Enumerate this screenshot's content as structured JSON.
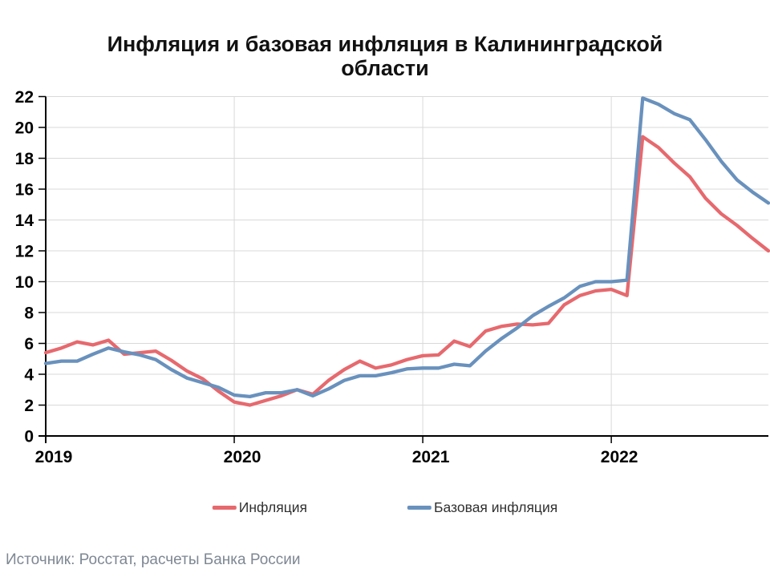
{
  "title": "Инфляция и базовая инфляция в Калининградской области",
  "source_note": "Источник: Росстат, расчеты Банка России",
  "legend": {
    "items": [
      {
        "label": "Инфляция",
        "color": "#E6696E"
      },
      {
        "label": "Базовая инфляция",
        "color": "#6991BD"
      }
    ]
  },
  "chart_data": {
    "type": "line",
    "title": "Инфляция и базовая инфляция в Калининградской области",
    "xlabel": "",
    "ylabel": "",
    "ylim": [
      0,
      22
    ],
    "y_ticks": [
      0,
      2,
      4,
      6,
      8,
      10,
      12,
      14,
      16,
      18,
      20,
      22
    ],
    "x_tick_labels": [
      "2019",
      "2020",
      "2021",
      "2022"
    ],
    "legend_position": "bottom",
    "grid": {
      "horizontal": true,
      "vertical_at_year_starts": true,
      "color": "#D9D9D9"
    },
    "axis_color": "#000000",
    "x": [
      "2019-01",
      "2019-02",
      "2019-03",
      "2019-04",
      "2019-05",
      "2019-06",
      "2019-07",
      "2019-08",
      "2019-09",
      "2019-10",
      "2019-11",
      "2019-12",
      "2020-01",
      "2020-02",
      "2020-03",
      "2020-04",
      "2020-05",
      "2020-06",
      "2020-07",
      "2020-08",
      "2020-09",
      "2020-10",
      "2020-11",
      "2020-12",
      "2021-01",
      "2021-02",
      "2021-03",
      "2021-04",
      "2021-05",
      "2021-06",
      "2021-07",
      "2021-08",
      "2021-09",
      "2021-10",
      "2021-11",
      "2021-12",
      "2022-01",
      "2022-02",
      "2022-03",
      "2022-04",
      "2022-05",
      "2022-06",
      "2022-07",
      "2022-08",
      "2022-09",
      "2022-10",
      "2022-11"
    ],
    "series": [
      {
        "name": "Инфляция",
        "color": "#E6696E",
        "values": [
          5.4,
          5.7,
          6.1,
          5.9,
          6.2,
          5.3,
          5.4,
          5.5,
          4.9,
          4.2,
          3.7,
          2.9,
          2.2,
          2.0,
          2.3,
          2.6,
          3.0,
          2.7,
          3.6,
          4.3,
          4.85,
          4.4,
          4.6,
          4.95,
          5.2,
          5.25,
          6.15,
          5.8,
          6.8,
          7.1,
          7.25,
          7.2,
          7.3,
          8.5,
          9.1,
          9.4,
          9.5,
          9.1,
          19.4,
          18.7,
          17.7,
          16.8,
          15.4,
          14.4,
          13.65,
          12.8,
          12.0
        ]
      },
      {
        "name": "Базовая инфляция",
        "color": "#6991BD",
        "values": [
          4.7,
          4.85,
          4.85,
          5.3,
          5.7,
          5.45,
          5.25,
          4.95,
          4.3,
          3.75,
          3.45,
          3.15,
          2.65,
          2.55,
          2.8,
          2.8,
          3.0,
          2.6,
          3.05,
          3.6,
          3.9,
          3.9,
          4.1,
          4.35,
          4.4,
          4.4,
          4.65,
          4.55,
          5.5,
          6.3,
          7.0,
          7.8,
          8.4,
          8.95,
          9.7,
          10.0,
          10.0,
          10.1,
          21.9,
          21.5,
          20.9,
          20.5,
          19.2,
          17.8,
          16.6,
          15.8,
          15.1
        ]
      }
    ]
  }
}
